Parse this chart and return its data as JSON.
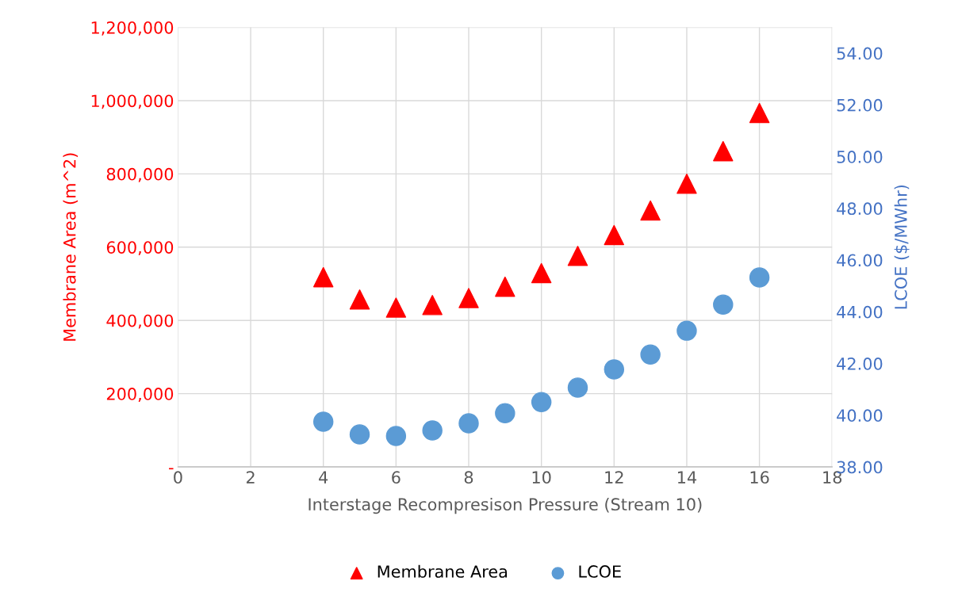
{
  "chart_data": {
    "type": "scatter",
    "xlabel": "Interstage Recompresison Pressure (Stream 10)",
    "ylabel": "Membrane Area (m^2)",
    "y2label": "LCOE ($/MWhr)",
    "x": [
      4,
      5,
      6,
      7,
      8,
      9,
      10,
      11,
      12,
      13,
      14,
      15,
      16
    ],
    "series": [
      {
        "name": "Membrane Area",
        "color": "#ff0000",
        "marker": "triangle",
        "values": [
          518000,
          457000,
          435000,
          442000,
          461000,
          492000,
          529000,
          576000,
          633000,
          700000,
          773000,
          862000,
          966000
        ]
      },
      {
        "name": "LCOE",
        "color": "#5b9bd5",
        "marker": "circle",
        "axis": "y2",
        "values": [
          39.75,
          39.26,
          39.2,
          39.41,
          39.69,
          40.08,
          40.51,
          41.07,
          41.77,
          42.35,
          43.27,
          44.28,
          45.33
        ]
      }
    ],
    "xlim": [
      0,
      18
    ],
    "xticks": [
      0,
      2,
      4,
      6,
      8,
      10,
      12,
      14,
      16,
      18
    ],
    "ylim": [
      0,
      1200000
    ],
    "yticks": [
      {
        "value": 0,
        "label": "-"
      },
      {
        "value": 200000,
        "label": "200,000"
      },
      {
        "value": 400000,
        "label": "400,000"
      },
      {
        "value": 600000,
        "label": "600,000"
      },
      {
        "value": 800000,
        "label": "800,000"
      },
      {
        "value": 1000000,
        "label": "1,000,000"
      },
      {
        "value": 1200000,
        "label": "1,200,000"
      }
    ],
    "y2lim": [
      38,
      55
    ],
    "y2ticks": [
      {
        "value": 38,
        "label": "38.00"
      },
      {
        "value": 40,
        "label": "40.00"
      },
      {
        "value": 42,
        "label": "42.00"
      },
      {
        "value": 44,
        "label": "44.00"
      },
      {
        "value": 46,
        "label": "46.00"
      },
      {
        "value": 48,
        "label": "48.00"
      },
      {
        "value": 50,
        "label": "50.00"
      },
      {
        "value": 52,
        "label": "52.00"
      },
      {
        "value": 54,
        "label": "54.00"
      }
    ],
    "grid": true,
    "legend": "bottom"
  }
}
